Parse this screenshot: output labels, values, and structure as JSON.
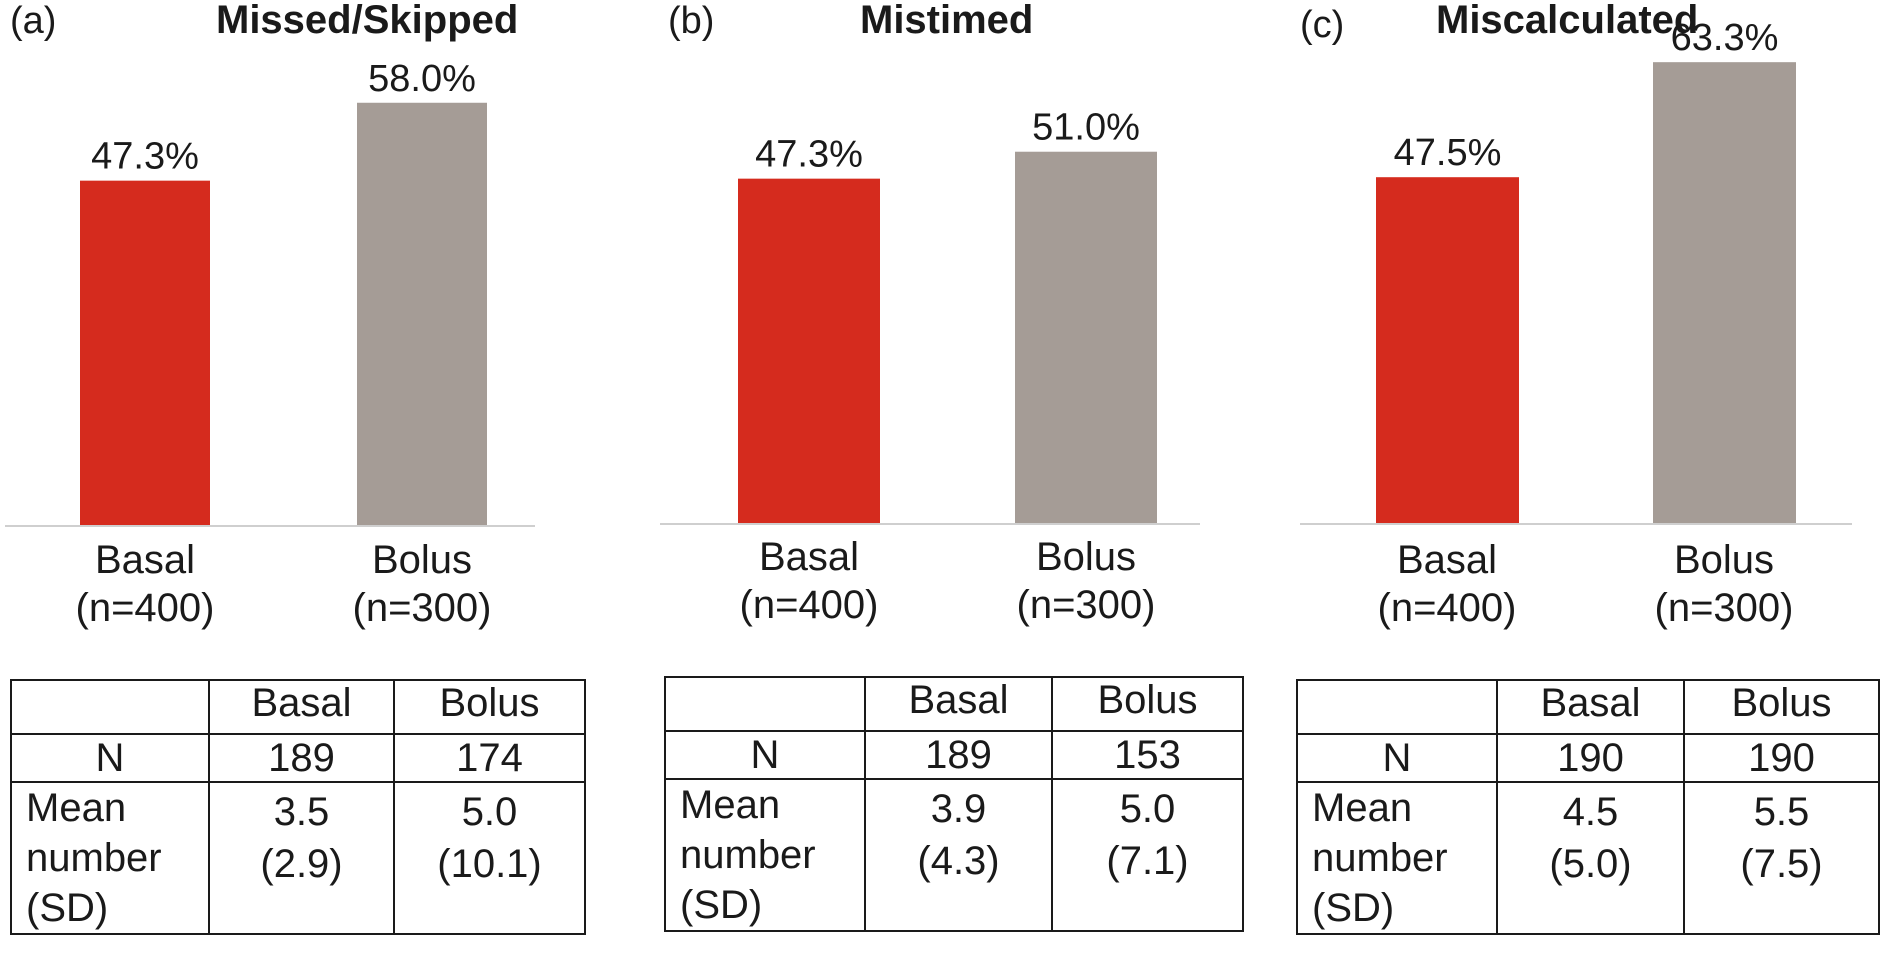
{
  "chart_data": [
    {
      "type": "bar",
      "panel": "(a)",
      "title": "Missed/Skipped",
      "categories": [
        [
          "Basal",
          "(n=400)"
        ],
        [
          "Bolus",
          "(n=300)"
        ]
      ],
      "values": [
        47.3,
        58.0
      ],
      "value_labels": [
        "47.3%",
        "58.0%"
      ],
      "colors": [
        "#d52b1e",
        "#a59c96"
      ],
      "ylim": [
        0,
        58
      ],
      "table": {
        "header": [
          "",
          "Basal",
          "Bolus"
        ],
        "n_row": [
          "N",
          "189",
          "174"
        ],
        "mean_label": [
          "Mean",
          "number",
          "(SD)"
        ],
        "mean_basal": [
          "3.5",
          "(2.9)"
        ],
        "mean_bolus": [
          "5.0",
          "(10.1)"
        ]
      }
    },
    {
      "type": "bar",
      "panel": "(b)",
      "title": "Mistimed",
      "categories": [
        [
          "Basal",
          "(n=400)"
        ],
        [
          "Bolus",
          "(n=300)"
        ]
      ],
      "values": [
        47.3,
        51.0
      ],
      "value_labels": [
        "47.3%",
        "51.0%"
      ],
      "colors": [
        "#d52b1e",
        "#a59c96"
      ],
      "ylim": [
        0,
        58
      ],
      "table": {
        "header": [
          "",
          "Basal",
          "Bolus"
        ],
        "n_row": [
          "N",
          "189",
          "153"
        ],
        "mean_label": [
          "Mean",
          "number",
          "(SD)"
        ],
        "mean_basal": [
          "3.9",
          "(4.3)"
        ],
        "mean_bolus": [
          "5.0",
          "(7.1)"
        ]
      }
    },
    {
      "type": "bar",
      "panel": "(c)",
      "title": "Miscalculated",
      "categories": [
        [
          "Basal",
          "(n=400)"
        ],
        [
          "Bolus",
          "(n=300)"
        ]
      ],
      "values": [
        47.5,
        63.3
      ],
      "value_labels": [
        "47.5%",
        "63.3%"
      ],
      "colors": [
        "#d52b1e",
        "#a59c96"
      ],
      "ylim": [
        0,
        73
      ],
      "table": {
        "header": [
          "",
          "Basal",
          "Bolus"
        ],
        "n_row": [
          "N",
          "190",
          "190"
        ],
        "mean_label": [
          "Mean",
          "number",
          "(SD)"
        ],
        "mean_basal": [
          "4.5",
          "(5.0)"
        ],
        "mean_bolus": [
          "5.5",
          "(7.5)"
        ]
      }
    }
  ]
}
